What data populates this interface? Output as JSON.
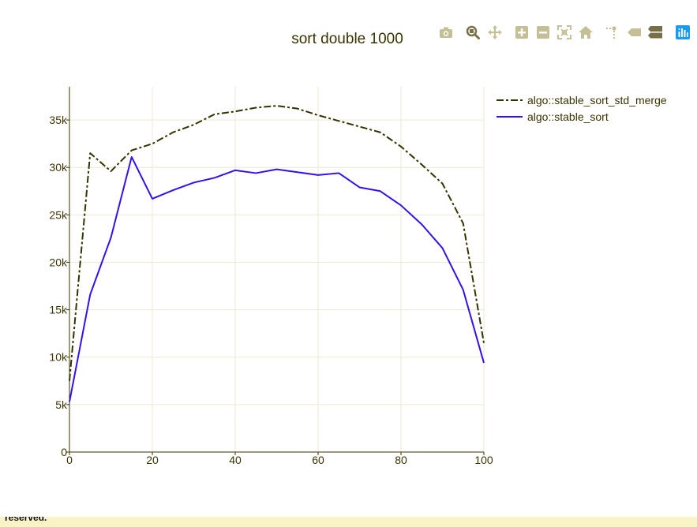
{
  "colors": {
    "grid": "#ece9d4",
    "axis": "#3a3300",
    "text": "#3a3300",
    "modebar_icon": "#c4bf94",
    "modebar_icon_active": "#776f45",
    "modebar_logo": "#1b9bf0",
    "footer_bg": "#fbf3c8"
  },
  "modebar": {
    "icons": [
      "camera-icon",
      "zoom-icon",
      "pan-icon",
      "zoom-in-icon",
      "zoom-out-icon",
      "autoscale-icon",
      "reset-axes-icon",
      "spike-lines-icon",
      "hover-closest-icon",
      "hover-compare-icon",
      "plotly-logo-icon"
    ]
  },
  "footer": {
    "text": "reserved."
  },
  "chart_data": {
    "type": "line",
    "title": "sort double 1000",
    "xlabel": "",
    "ylabel": "",
    "xlim": [
      0,
      100
    ],
    "ylim": [
      0,
      38500
    ],
    "x_ticks": [
      0,
      20,
      40,
      60,
      80,
      100
    ],
    "x_tick_labels": [
      "0",
      "20",
      "40",
      "60",
      "80",
      "100"
    ],
    "y_ticks": [
      0,
      5000,
      10000,
      15000,
      20000,
      25000,
      30000,
      35000
    ],
    "y_tick_labels": [
      "0",
      "5k",
      "10k",
      "15k",
      "20k",
      "25k",
      "30k",
      "35k"
    ],
    "grid": true,
    "legend_position": "top-right",
    "x": [
      0,
      5,
      10,
      15,
      20,
      25,
      30,
      35,
      40,
      45,
      50,
      55,
      60,
      65,
      70,
      75,
      80,
      85,
      90,
      95,
      100
    ],
    "series": [
      {
        "name": "algo::stable_sort_std_merge",
        "color": "#333300",
        "dash": "dashdot",
        "values": [
          7500,
          31500,
          29600,
          31800,
          32500,
          33700,
          34500,
          35600,
          35900,
          36300,
          36500,
          36200,
          35500,
          34900,
          34300,
          33700,
          32200,
          30300,
          28300,
          24100,
          11500
        ]
      },
      {
        "name": "algo::stable_sort",
        "color": "#3311ee",
        "dash": "solid",
        "values": [
          5300,
          16600,
          22600,
          31100,
          26700,
          27600,
          28400,
          28900,
          29700,
          29400,
          29800,
          29500,
          29200,
          29400,
          27900,
          27500,
          26000,
          24000,
          21500,
          17100,
          9400
        ]
      }
    ]
  }
}
